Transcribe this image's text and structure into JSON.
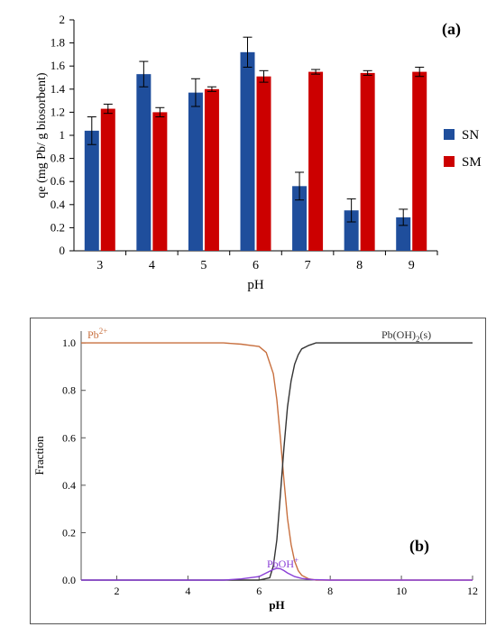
{
  "chart_data": [
    {
      "type": "bar",
      "panel_label": "(a)",
      "categories": [
        "3",
        "4",
        "5",
        "6",
        "7",
        "8",
        "9"
      ],
      "series": [
        {
          "name": "SN",
          "color": "#1f4e9c",
          "values": [
            1.04,
            1.53,
            1.37,
            1.72,
            0.56,
            0.35,
            0.29
          ],
          "errors": [
            0.12,
            0.11,
            0.12,
            0.13,
            0.12,
            0.1,
            0.07
          ]
        },
        {
          "name": "SM",
          "color": "#cc0000",
          "values": [
            1.23,
            1.2,
            1.4,
            1.51,
            1.55,
            1.54,
            1.55
          ],
          "errors": [
            0.04,
            0.04,
            0.02,
            0.05,
            0.02,
            0.02,
            0.04
          ]
        }
      ],
      "xlabel": "pH",
      "ylabel": "qe  (mg Pb/ g biosorbent)",
      "ylim": [
        0,
        2
      ],
      "yticks": [
        "0",
        "0.2",
        "0.4",
        "0.6",
        "0.8",
        "1",
        "1.2",
        "1.4",
        "1.6",
        "1.8",
        "2"
      ],
      "legend": "right",
      "grid": false
    },
    {
      "type": "line",
      "panel_label": "(b)",
      "xlabel": "pH",
      "ylabel": "Fraction",
      "xlim": [
        1,
        12
      ],
      "ylim": [
        0,
        1.05
      ],
      "xticks": [
        "2",
        "4",
        "6",
        "8",
        "10",
        "12"
      ],
      "yticks": [
        "0.0",
        "0.2",
        "0.4",
        "0.6",
        "0.8",
        "1.0"
      ],
      "series": [
        {
          "name": "Pb2+",
          "label_main": "Pb",
          "label_sup": "2+",
          "color": "#c8703f",
          "x": [
            1,
            2,
            3,
            4,
            5,
            5.5,
            6,
            6.2,
            6.4,
            6.5,
            6.6,
            6.7,
            6.8,
            6.9,
            7.0,
            7.1,
            7.2,
            7.4,
            7.6,
            8,
            9,
            10,
            11,
            12
          ],
          "y": [
            1.0,
            1.0,
            1.0,
            1.0,
            1.0,
            0.995,
            0.985,
            0.96,
            0.87,
            0.76,
            0.6,
            0.42,
            0.26,
            0.15,
            0.08,
            0.04,
            0.02,
            0.005,
            0,
            0,
            0,
            0,
            0,
            0
          ]
        },
        {
          "name": "Pb(OH)2(s)",
          "label_main": "Pb(OH)",
          "label_sub": "2",
          "label_tail": "(s)",
          "color": "#333333",
          "x": [
            1,
            5,
            6,
            6.3,
            6.4,
            6.5,
            6.6,
            6.7,
            6.8,
            6.9,
            7.0,
            7.1,
            7.2,
            7.4,
            7.6,
            8,
            9,
            10,
            11,
            12
          ],
          "y": [
            0,
            0,
            0,
            0.01,
            0.06,
            0.17,
            0.36,
            0.56,
            0.73,
            0.84,
            0.91,
            0.95,
            0.975,
            0.99,
            1.0,
            1.0,
            1.0,
            1.0,
            1.0,
            1.0
          ]
        },
        {
          "name": "PbOH+",
          "label_main": "PbOH",
          "label_sup": "+",
          "color": "#8a3fd6",
          "x": [
            1,
            5,
            5.5,
            6,
            6.2,
            6.4,
            6.5,
            6.6,
            6.7,
            6.8,
            7.0,
            7.2,
            7.5,
            8,
            12
          ],
          "y": [
            0,
            0,
            0.005,
            0.015,
            0.03,
            0.045,
            0.05,
            0.048,
            0.04,
            0.03,
            0.015,
            0.007,
            0.002,
            0,
            0
          ]
        }
      ],
      "grid": false
    }
  ]
}
